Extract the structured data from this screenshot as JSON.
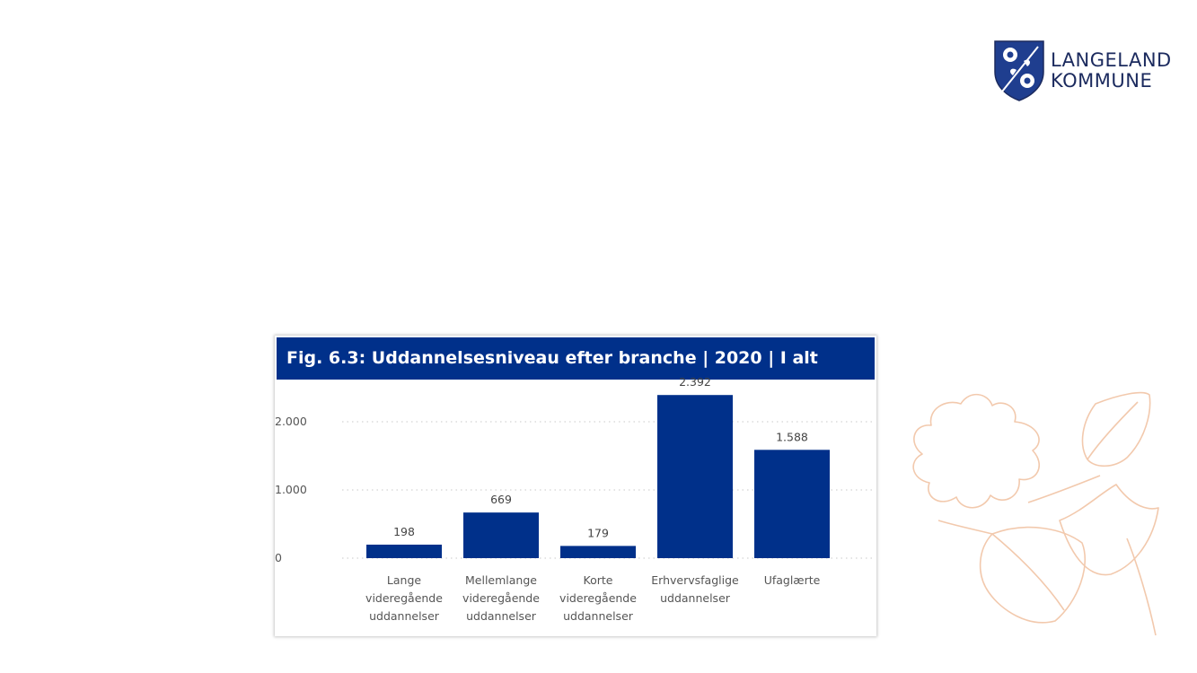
{
  "logo": {
    "line1": "LANGELAND",
    "line2": "KOMMUNE"
  },
  "colors": {
    "bar": "#00308a",
    "title_bg": "#00308a",
    "decor": "#f2c9ad"
  },
  "chart_data": {
    "type": "bar",
    "title": "Fig. 6.3: Uddannelsesniveau efter branche | 2020 | I alt",
    "categories": [
      [
        "Lange",
        "videregående",
        "uddannelser"
      ],
      [
        "Mellemlange",
        "videregående",
        "uddannelser"
      ],
      [
        "Korte",
        "videregående",
        "uddannelser"
      ],
      [
        "Erhvervsfaglige",
        "uddannelser"
      ],
      [
        "Ufaglærte"
      ]
    ],
    "values": [
      198,
      669,
      179,
      2392,
      1588
    ],
    "value_labels": [
      "198",
      "669",
      "179",
      "2.392",
      "1.588"
    ],
    "yticks": [
      0,
      1000,
      2000
    ],
    "ytick_labels": [
      "0",
      "1.000",
      "2.000"
    ],
    "ylim": [
      0,
      2500
    ],
    "grid": "dotted horizontal",
    "xlabel": "",
    "ylabel": ""
  }
}
